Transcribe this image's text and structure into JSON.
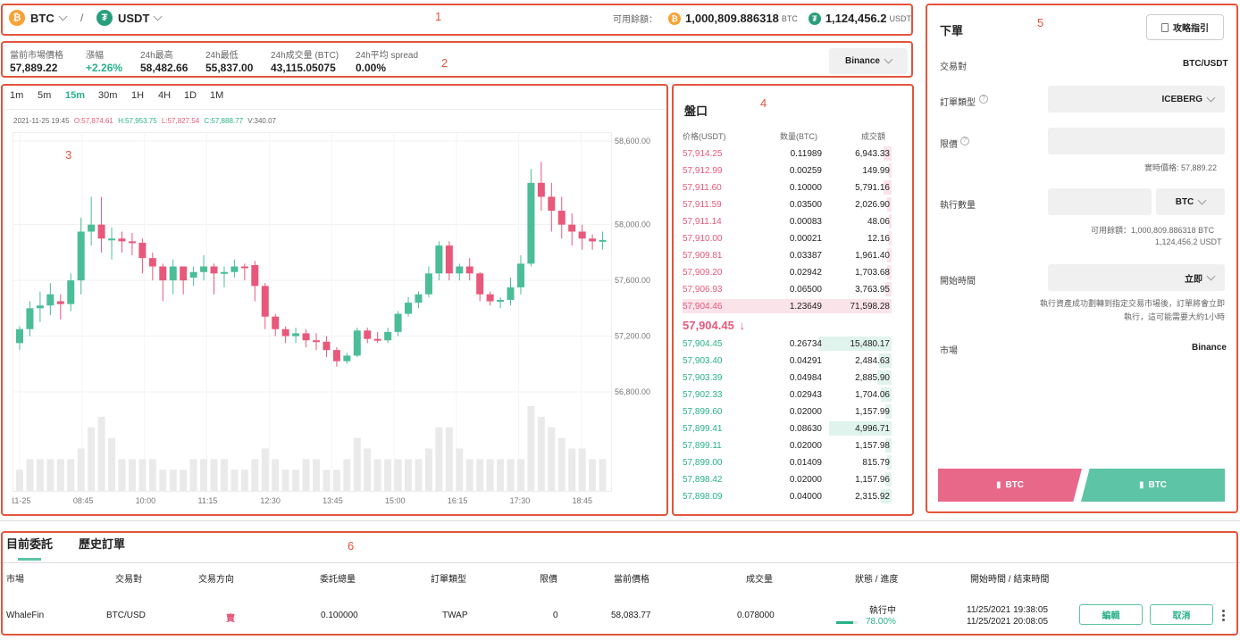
{
  "header": {
    "base": "BTC",
    "quote": "USDT",
    "sep": "/",
    "avail_label": "可用餘額：",
    "btc_amount": "1,000,809.886318",
    "btc_unit": "BTC",
    "usdt_amount": "1,124,456.2",
    "usdt_unit": "USDT"
  },
  "stats": {
    "labels": [
      "當前市場價格",
      "漲幅",
      "24h最高",
      "24h最低",
      "24h成交量 (BTC)",
      "24h平均 spread"
    ],
    "values": [
      "57,889.22",
      "+2.26%",
      "58,482.66",
      "55,837.00",
      "43,115.05075",
      "0.00%"
    ],
    "exchange": "Binance"
  },
  "timeframes": [
    "1m",
    "5m",
    "15m",
    "30m",
    "1H",
    "4H",
    "1D",
    "1M"
  ],
  "ohlc": {
    "time": "2021-11-25 19:45",
    "o": "O:57,874.61",
    "h": "H:57,953.75",
    "l": "L:57,827.54",
    "c": "C:57,888.77",
    "v": "V:340.07"
  },
  "chart_data": {
    "type": "candlestick",
    "y_ticks": [
      "58,600.00",
      "58,000.00",
      "57,600.00",
      "57,200.00",
      "56,800.00"
    ],
    "x_ticks": [
      "11-25",
      "08:45",
      "10:00",
      "11:15",
      "12:30",
      "13:45",
      "15:00",
      "16:15",
      "17:30",
      "18:45"
    ],
    "candles": [
      [
        57150,
        57250,
        57100,
        57270
      ],
      [
        57250,
        57400,
        57200,
        57450
      ],
      [
        57400,
        57420,
        57300,
        57520
      ],
      [
        57420,
        57500,
        57350,
        57580
      ],
      [
        57450,
        57430,
        57320,
        57500
      ],
      [
        57430,
        57600,
        57380,
        57650
      ],
      [
        57600,
        57950,
        57500,
        58050
      ],
      [
        57950,
        58000,
        57850,
        58200
      ],
      [
        58000,
        57900,
        57800,
        58200
      ],
      [
        57900,
        57900,
        57750,
        57980
      ],
      [
        57900,
        57880,
        57800,
        57950
      ],
      [
        57880,
        57870,
        57780,
        57940
      ],
      [
        57870,
        57760,
        57650,
        57900
      ],
      [
        57760,
        57700,
        57600,
        57800
      ],
      [
        57700,
        57600,
        57450,
        57720
      ],
      [
        57600,
        57700,
        57500,
        57750
      ],
      [
        57700,
        57600,
        57500,
        57700
      ],
      [
        57620,
        57660,
        57560,
        57700
      ],
      [
        57660,
        57700,
        57600,
        57780
      ],
      [
        57700,
        57650,
        57500,
        57720
      ],
      [
        57650,
        57660,
        57550,
        57700
      ],
      [
        57660,
        57700,
        57620,
        57750
      ],
      [
        57700,
        57690,
        57600,
        57720
      ],
      [
        57710,
        57560,
        57450,
        57740
      ],
      [
        57560,
        57340,
        57250,
        57580
      ],
      [
        57340,
        57250,
        57200,
        57360
      ],
      [
        57250,
        57200,
        57150,
        57270
      ],
      [
        57200,
        57220,
        57150,
        57260
      ],
      [
        57220,
        57170,
        57120,
        57250
      ],
      [
        57170,
        57160,
        57100,
        57220
      ],
      [
        57160,
        57100,
        57050,
        57200
      ],
      [
        57100,
        57020,
        56980,
        57120
      ],
      [
        57020,
        57060,
        57000,
        57080
      ],
      [
        57060,
        57240,
        57050,
        57260
      ],
      [
        57240,
        57180,
        57150,
        57260
      ],
      [
        57180,
        57170,
        57150,
        57230
      ],
      [
        57170,
        57230,
        57150,
        57260
      ],
      [
        57230,
        57360,
        57200,
        57380
      ],
      [
        57360,
        57440,
        57340,
        57480
      ],
      [
        57440,
        57500,
        57400,
        57520
      ],
      [
        57500,
        57650,
        57480,
        57700
      ],
      [
        57650,
        57850,
        57600,
        57880
      ],
      [
        57850,
        57650,
        57600,
        57880
      ],
      [
        57650,
        57700,
        57600,
        57720
      ],
      [
        57700,
        57650,
        57600,
        57760
      ],
      [
        57650,
        57500,
        57450,
        57660
      ],
      [
        57500,
        57450,
        57420,
        57520
      ],
      [
        57450,
        57460,
        57400,
        57480
      ],
      [
        57460,
        57550,
        57420,
        57620
      ],
      [
        57550,
        57720,
        57500,
        57780
      ],
      [
        57720,
        58300,
        57700,
        58400
      ],
      [
        58300,
        58200,
        58100,
        58450
      ],
      [
        58200,
        58100,
        57950,
        58300
      ],
      [
        58100,
        58000,
        57900,
        58200
      ],
      [
        58000,
        57950,
        57850,
        58080
      ],
      [
        57950,
        57900,
        57820,
        58000
      ],
      [
        57900,
        57880,
        57820,
        57930
      ],
      [
        57880,
        57890,
        57820,
        57950
      ]
    ],
    "volumes": [
      2,
      3,
      3,
      3,
      3,
      3,
      4,
      6,
      7,
      5,
      3,
      3,
      3,
      3,
      2,
      2,
      2,
      3,
      3,
      3,
      3,
      2,
      2,
      3,
      4,
      3,
      2,
      2,
      3,
      3,
      2,
      2,
      3,
      5,
      4,
      3,
      3,
      3,
      3,
      3,
      4,
      6,
      6,
      4,
      3,
      3,
      3,
      3,
      3,
      3,
      8,
      7,
      6,
      5,
      4,
      4,
      3,
      3
    ]
  },
  "orderbook": {
    "title": "盤口",
    "headers": [
      "价格(USDT)",
      "数量(BTC)",
      "成交額"
    ],
    "asks": [
      [
        "57,914.25",
        "0.11989",
        "6,943.33",
        0.04
      ],
      [
        "57,912.99",
        "0.00259",
        "149.99",
        0.01
      ],
      [
        "57,911.60",
        "0.10000",
        "5,791.16",
        0.04
      ],
      [
        "57,911.59",
        "0.03500",
        "2,026.90",
        0.02
      ],
      [
        "57,911.14",
        "0.00083",
        "48.06",
        0.01
      ],
      [
        "57,910.00",
        "0.00021",
        "12.16",
        0.01
      ],
      [
        "57,909.81",
        "0.03387",
        "1,961.40",
        0.02
      ],
      [
        "57,909.20",
        "0.02942",
        "1,703.68",
        0.02
      ],
      [
        "57,906.93",
        "0.06500",
        "3,763.95",
        0.03
      ],
      [
        "57,904.46",
        "1.23649",
        "71,598.28",
        1.0
      ]
    ],
    "mid_price": "57,904.45",
    "mid_arrow": "↓",
    "bids": [
      [
        "57,904.45",
        "0.26734",
        "15,480.17",
        0.35
      ],
      [
        "57,903.40",
        "0.04291",
        "2,484.63",
        0.06
      ],
      [
        "57,903.39",
        "0.04984",
        "2,885.90",
        0.07
      ],
      [
        "57,902.33",
        "0.02943",
        "1,704.06",
        0.05
      ],
      [
        "57,899.60",
        "0.02000",
        "1,157.99",
        0.03
      ],
      [
        "57,899.41",
        "0.08630",
        "4,996.71",
        0.3
      ],
      [
        "57,899.11",
        "0.02000",
        "1,157.98",
        0.03
      ],
      [
        "57,899.00",
        "0.01409",
        "815.79",
        0.02
      ],
      [
        "57,898.42",
        "0.02000",
        "1,157.96",
        0.03
      ],
      [
        "57,898.09",
        "0.04000",
        "2,315.92",
        0.05
      ]
    ]
  },
  "order_form": {
    "title": "下單",
    "guide_btn": "攻略指引",
    "pair_label": "交易對",
    "pair_value": "BTC/USDT",
    "type_label": "訂單類型",
    "type_value": "ICEBERG",
    "limit_label": "限價",
    "realtime_price": "實時價格: 57,889.22",
    "qty_label": "執行數量",
    "qty_unit": "BTC",
    "avail_line1": "可用餘額：1,000,809.886318 BTC",
    "avail_line2": "1,124,456.2 USDT",
    "start_label": "開始時間",
    "start_value": "立即",
    "note": "執行資產成功劃轉到指定交易市場後，訂單將會立即執行，這可能需要大約1小時",
    "market_label": "市場",
    "market_value": "Binance",
    "buy_label": "BTC",
    "sell_label": "BTC"
  },
  "orders": {
    "tabs": [
      "目前委託",
      "歷史訂單"
    ],
    "headers": [
      "市場",
      "交易對",
      "交易方向",
      "委託總量",
      "訂單類型",
      "限價",
      "當前價格",
      "成交量",
      "狀態 / 進度",
      "開始時間 / 結束時間"
    ],
    "row": {
      "market": "WhaleFin",
      "pair": "BTC/USD",
      "side": "賣",
      "total": "0.100000",
      "type": "TWAP",
      "limit": "0",
      "price": "58,083.77",
      "filled": "0.078000",
      "status": "執行中",
      "progress": "78.00%",
      "progress_value": 0.78,
      "start": "11/25/2021 19:38:05",
      "end": "11/25/2021 20:08:05",
      "edit": "編輯",
      "cancel": "取消"
    }
  },
  "annotations": [
    "1",
    "2",
    "3",
    "4",
    "5",
    "6"
  ]
}
